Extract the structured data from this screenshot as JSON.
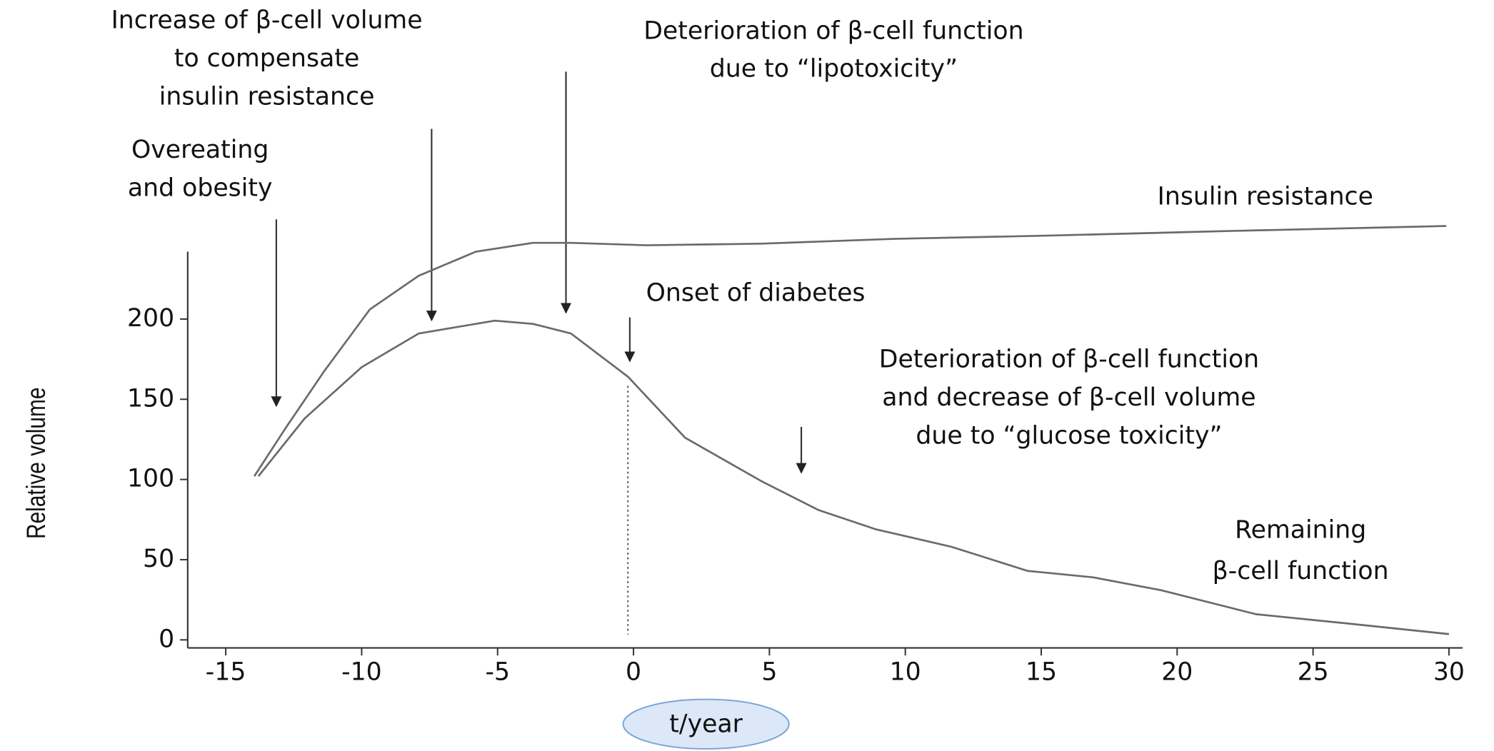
{
  "chart_data": {
    "type": "line",
    "x_label": "t/year",
    "y_label": "Relative volume",
    "xlim": [
      -16.4,
      30.5
    ],
    "ylim": [
      -5,
      242
    ],
    "xticks": [
      -15,
      -10,
      -5,
      0,
      5,
      10,
      15,
      20,
      25,
      30
    ],
    "yticks": [
      0,
      50,
      100,
      150,
      200
    ],
    "series": [
      {
        "name": "Insulin resistance",
        "color": "#6a6a6a",
        "x": [
          -13.95,
          -12.8,
          -11.4,
          -9.7,
          -7.9,
          -5.8,
          -3.7,
          -2.3,
          0.5,
          4.7,
          9.6,
          15.2,
          22.2,
          29.9
        ],
        "values": [
          102,
          132,
          167,
          206,
          227,
          242,
          247.5,
          247.5,
          246,
          247,
          250,
          252,
          255,
          258
        ]
      },
      {
        "name": "Remaining β-cell function",
        "color": "#6a6a6a",
        "x": [
          -13.8,
          -12.1,
          -10,
          -7.9,
          -5.1,
          -3.7,
          -2.3,
          -0.2,
          1.9,
          4.7,
          6.8,
          8.9,
          11.7,
          14.5,
          16.9,
          19.4,
          22.9,
          26.4,
          30
        ],
        "values": [
          102,
          138,
          170,
          191,
          199,
          197,
          191,
          164,
          126,
          99,
          81,
          69,
          58,
          43,
          39,
          31,
          16,
          10,
          3.6
        ]
      }
    ],
    "annotations": [
      {
        "lines": [
          "Increase of β-cell volume",
          "to compensate",
          "insulin resistance"
        ]
      },
      {
        "lines": [
          "Overeating",
          "and obesity"
        ]
      },
      {
        "lines": [
          "Deterioration of β-cell function",
          "due to “lipotoxicity”"
        ]
      },
      {
        "lines": [
          "Insulin resistance"
        ]
      },
      {
        "lines": [
          "Onset of diabetes"
        ]
      },
      {
        "lines": [
          "Deterioration of β-cell function",
          "and decrease of β-cell volume",
          "due to “glucose toxicity”"
        ]
      },
      {
        "lines": [
          "Remaining",
          "β-cell function"
        ]
      }
    ]
  }
}
